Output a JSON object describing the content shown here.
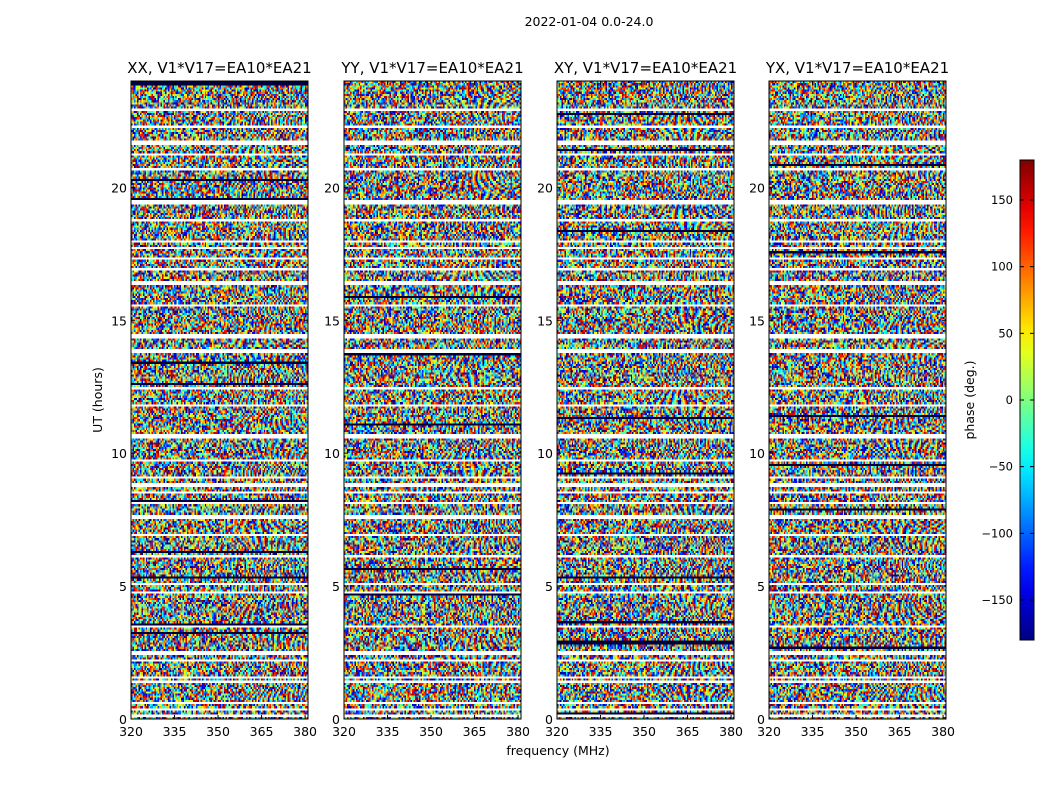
{
  "chart_data": [
    {
      "type": "heatmap",
      "title": "XX, V1*V17=EA10*EA21",
      "suptitle": "2022-01-04 0.0-24.0",
      "xlabel": "",
      "ylabel": "UT (hours)",
      "xlim": [
        320,
        381
      ],
      "ylim": [
        0,
        24
      ],
      "xticks": [
        "320",
        "335",
        "350",
        "365",
        "380"
      ],
      "yticks": [
        "0",
        "5",
        "10",
        "15",
        "20"
      ],
      "value": "phase (deg.)",
      "value_range": [
        -180,
        180
      ]
    },
    {
      "type": "heatmap",
      "title": "YY, V1*V17=EA10*EA21",
      "xlabel": "frequency (MHz)",
      "ylabel": "",
      "xlim": [
        320,
        381
      ],
      "ylim": [
        0,
        24
      ],
      "xticks": [
        "320",
        "335",
        "350",
        "365",
        "380"
      ],
      "yticks": [
        "0",
        "5",
        "10",
        "15",
        "20"
      ],
      "value": "phase (deg.)",
      "value_range": [
        -180,
        180
      ]
    },
    {
      "type": "heatmap",
      "title": "XY, V1*V17=EA10*EA21",
      "xlabel": "",
      "ylabel": "",
      "xlim": [
        320,
        381
      ],
      "ylim": [
        0,
        24
      ],
      "xticks": [
        "320",
        "335",
        "350",
        "365",
        "380"
      ],
      "yticks": [
        "0",
        "5",
        "10",
        "15",
        "20"
      ],
      "value": "phase (deg.)",
      "value_range": [
        -180,
        180
      ]
    },
    {
      "type": "heatmap",
      "title": "YX, V1*V17=EA10*EA21",
      "xlabel": "",
      "ylabel": "",
      "xlim": [
        320,
        381
      ],
      "ylim": [
        0,
        24
      ],
      "xticks": [
        "320",
        "335",
        "350",
        "365",
        "380"
      ],
      "yticks": [
        "0",
        "5",
        "10",
        "15",
        "20"
      ],
      "value": "phase (deg.)",
      "value_range": [
        -180,
        180
      ]
    }
  ],
  "figure": {
    "suptitle": "2022-01-04 0.0-24.0",
    "colorbar": {
      "label": "phase (deg.)",
      "min": -180,
      "max": 180,
      "ticks": [
        "150",
        "100",
        "50",
        "0",
        "−50",
        "−100",
        "−150"
      ],
      "tick_values": [
        150,
        100,
        50,
        0,
        -50,
        -100,
        -150
      ],
      "colormap": "jet"
    },
    "flagged_ut_hours": [
      0.1,
      0.35,
      0.55,
      1.35,
      1.55,
      2.15,
      2.45,
      3.45,
      4.75,
      5.05,
      6.1,
      6.9,
      7.55,
      8.05,
      8.45,
      8.75,
      9.05,
      9.7,
      10.6,
      11.75,
      12.4,
      13.8,
      14.35,
      15.5,
      16.35,
      16.9,
      17.25,
      17.7,
      17.95,
      18.7,
      19.4,
      20.65,
      21.2,
      21.65,
      22.25,
      22.9
    ]
  }
}
